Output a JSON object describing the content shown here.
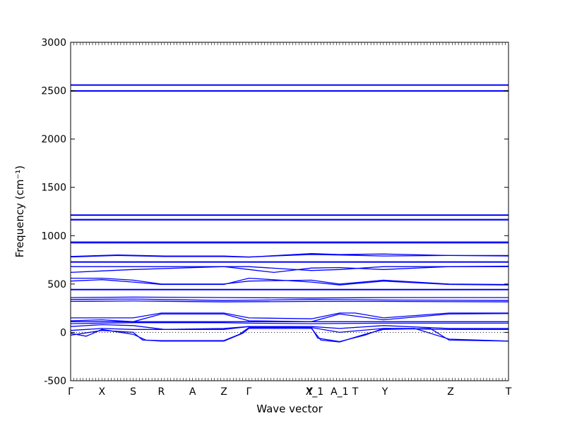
{
  "chart_data": {
    "type": "line",
    "xlabel": "Wave vector",
    "ylabel": "Frequency (cm⁻¹)",
    "ylim": [
      -500,
      3000
    ],
    "xlim": [
      0,
      14.0
    ],
    "grid": false,
    "line_color": "#0000ff",
    "yticks": [
      -500,
      0,
      500,
      1000,
      1500,
      2000,
      2500,
      3000
    ],
    "high_symmetry_points": [
      {
        "label": "Γ",
        "x": 0.0
      },
      {
        "label": "X",
        "x": 1.0
      },
      {
        "label": "S",
        "x": 2.0
      },
      {
        "label": "R",
        "x": 2.9
      },
      {
        "label": "A",
        "x": 3.9
      },
      {
        "label": "Z",
        "x": 4.9
      },
      {
        "label": "Γ",
        "x": 5.7
      },
      {
        "label": "Y",
        "x": 7.65
      },
      {
        "label": "X_1",
        "x": 7.8
      },
      {
        "label": "A_1",
        "x": 8.6
      },
      {
        "label": "T",
        "x": 9.1
      },
      {
        "label": "Y",
        "x": 10.05
      },
      {
        "label": "Z",
        "x": 12.15
      },
      {
        "label": "T",
        "x": 14.0
      }
    ],
    "series": [
      {
        "x": [
          0,
          14
        ],
        "y": [
          2560,
          2560
        ]
      },
      {
        "x": [
          0,
          14
        ],
        "y": [
          2555,
          2555
        ]
      },
      {
        "x": [
          0,
          14
        ],
        "y": [
          2500,
          2500
        ]
      },
      {
        "x": [
          0,
          14
        ],
        "y": [
          2495,
          2495
        ]
      },
      {
        "x": [
          0,
          14
        ],
        "y": [
          1215,
          1215
        ]
      },
      {
        "x": [
          0,
          14
        ],
        "y": [
          1210,
          1210
        ]
      },
      {
        "x": [
          0,
          14
        ],
        "y": [
          1168,
          1168
        ]
      },
      {
        "x": [
          0,
          14
        ],
        "y": [
          1162,
          1162
        ]
      },
      {
        "x": [
          0,
          14
        ],
        "y": [
          935,
          935
        ]
      },
      {
        "x": [
          0,
          14
        ],
        "y": [
          925,
          925
        ]
      },
      {
        "x": [
          0,
          1.5,
          3,
          4.9,
          5.7,
          7.7,
          8.6,
          10,
          12.1,
          14
        ],
        "y": [
          785,
          800,
          790,
          790,
          780,
          805,
          800,
          790,
          795,
          795
        ]
      },
      {
        "x": [
          0,
          1.5,
          3,
          4.9,
          5.7,
          7.7,
          8.6,
          10,
          12.1,
          14
        ],
        "y": [
          780,
          795,
          785,
          785,
          778,
          815,
          805,
          810,
          795,
          790
        ]
      },
      {
        "x": [
          0,
          14
        ],
        "y": [
          730,
          730
        ]
      },
      {
        "x": [
          0,
          14
        ],
        "y": [
          725,
          725
        ]
      },
      {
        "x": [
          0,
          1,
          2,
          4.9,
          5.7,
          6.5,
          7.7,
          8.6,
          10,
          12.1,
          14
        ],
        "y": [
          620,
          635,
          650,
          680,
          650,
          620,
          665,
          670,
          650,
          680,
          685
        ]
      },
      {
        "x": [
          0,
          2,
          4.9,
          5.7,
          7.7,
          8.6,
          10,
          12.1,
          14
        ],
        "y": [
          680,
          680,
          680,
          680,
          640,
          650,
          680,
          680,
          680
        ]
      },
      {
        "x": [
          0,
          1,
          2,
          2.9,
          4.9,
          5.7,
          7.7,
          8.6,
          10,
          12.1,
          14
        ],
        "y": [
          560,
          560,
          540,
          500,
          500,
          530,
          540,
          500,
          540,
          500,
          495
        ]
      },
      {
        "x": [
          0,
          1,
          2,
          2.9,
          4.9,
          5.7,
          7.7,
          8.6,
          10,
          12.1,
          14
        ],
        "y": [
          530,
          545,
          520,
          495,
          495,
          560,
          520,
          490,
          530,
          495,
          490
        ]
      },
      {
        "x": [
          0,
          14
        ],
        "y": [
          445,
          445
        ]
      },
      {
        "x": [
          0,
          14
        ],
        "y": [
          440,
          440
        ]
      },
      {
        "x": [
          0,
          2,
          4.9,
          7.7,
          10,
          14
        ],
        "y": [
          360,
          365,
          360,
          355,
          360,
          360
        ]
      },
      {
        "x": [
          0,
          2,
          4.9,
          7.7,
          10,
          14
        ],
        "y": [
          340,
          345,
          330,
          340,
          335,
          330
        ]
      },
      {
        "x": [
          0,
          2,
          4.9,
          7.7,
          10,
          14
        ],
        "y": [
          320,
          325,
          315,
          320,
          320,
          315
        ]
      },
      {
        "x": [
          0,
          1,
          2,
          2.9,
          3.9,
          4.9,
          5.7,
          7.7,
          8.6,
          9.1,
          10,
          12.1,
          14
        ],
        "y": [
          150,
          150,
          150,
          200,
          200,
          200,
          150,
          140,
          200,
          200,
          150,
          200,
          200
        ]
      },
      {
        "x": [
          0,
          1,
          2,
          2.9,
          4.9,
          5.7,
          7.7,
          8.6,
          10,
          12.1,
          14
        ],
        "y": [
          120,
          130,
          110,
          190,
          190,
          120,
          110,
          190,
          130,
          190,
          195
        ]
      },
      {
        "x": [
          0,
          14
        ],
        "y": [
          110,
          110
        ]
      },
      {
        "x": [
          0,
          1,
          2,
          4.9,
          5.7,
          7.7,
          10,
          14
        ],
        "y": [
          90,
          95,
          100,
          100,
          95,
          90,
          95,
          95
        ]
      },
      {
        "x": [
          0,
          1,
          2,
          3,
          4.9,
          5.7,
          7.7,
          8.6,
          10,
          12.1,
          14
        ],
        "y": [
          60,
          80,
          70,
          30,
          40,
          60,
          60,
          40,
          70,
          40,
          40
        ]
      },
      {
        "x": [
          0,
          1,
          2,
          2.9,
          4.9,
          5.7,
          7.7,
          8.6,
          10,
          12.1,
          14
        ],
        "y": [
          20,
          40,
          30,
          30,
          30,
          60,
          50,
          0,
          40,
          30,
          30
        ]
      },
      {
        "x": [
          0,
          0.5,
          1,
          2,
          2.4,
          2.9,
          4.9,
          5.5,
          5.7,
          7.7,
          8.0,
          8.6,
          9.4,
          10,
          11.5,
          12.1,
          14
        ],
        "y": [
          -10,
          -40,
          30,
          -20,
          -80,
          -90,
          -90,
          -10,
          40,
          40,
          -80,
          -100,
          -20,
          30,
          40,
          -80,
          -90
        ]
      },
      {
        "x": [
          0,
          1,
          2,
          2.3,
          2.9,
          4.9,
          5.4,
          5.7,
          7.7,
          7.9,
          8.6,
          9.4,
          10,
          11.0,
          12.1,
          14
        ],
        "y": [
          -30,
          20,
          0,
          -80,
          -85,
          -85,
          -20,
          50,
          50,
          -60,
          -95,
          -30,
          40,
          40,
          -70,
          -90
        ]
      }
    ]
  }
}
